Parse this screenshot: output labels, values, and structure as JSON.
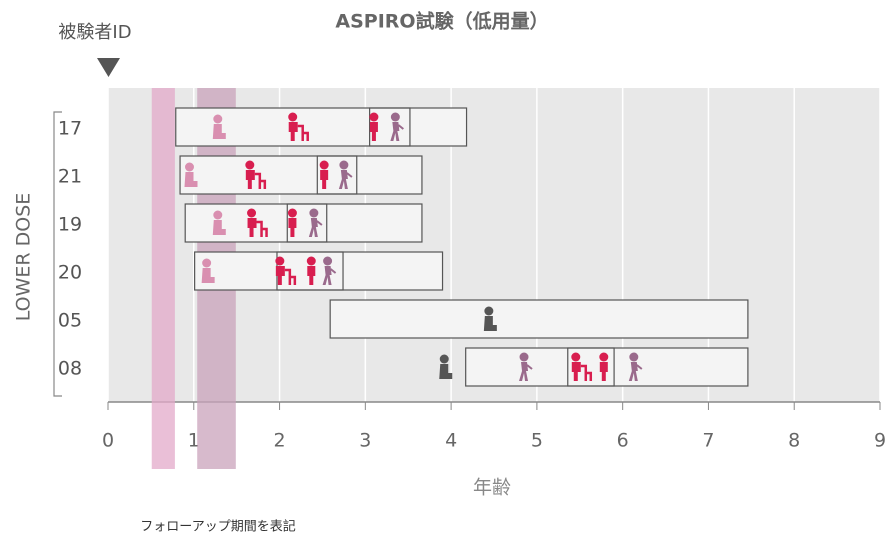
{
  "chart_data": {
    "type": "swimmer",
    "title": "ASPIRO試験（低用量）",
    "id_label": "被験者ID",
    "y_label": "LOWER DOSE",
    "x_label": "年齢",
    "footnote": "フォローアップ期間を表記",
    "xlim": [
      0,
      9
    ],
    "xticks": [
      0,
      1,
      2,
      3,
      4,
      5,
      6,
      7,
      8,
      9
    ],
    "grid": true,
    "shaded_regions": [
      {
        "range": [
          0.51,
          0.78
        ],
        "color": "#e3a9c9"
      },
      {
        "range": [
          1.04,
          1.49
        ],
        "color": "#c9a3bb"
      }
    ],
    "rows": [
      {
        "id": "17",
        "start": 0.79,
        "end": 4.18,
        "highlight": [
          3.05,
          3.52
        ],
        "events": [
          {
            "x": 1.28,
            "marker": "sit",
            "color": "#d98fb0"
          },
          {
            "x": 2.2,
            "marker": "walker",
            "color": "#d81e4f"
          },
          {
            "x": 3.1,
            "marker": "stand",
            "color": "#d81e4f"
          },
          {
            "x": 3.35,
            "marker": "walk",
            "color": "#9a6a8c"
          }
        ]
      },
      {
        "id": "21",
        "start": 0.84,
        "end": 3.66,
        "highlight": [
          2.44,
          2.9
        ],
        "events": [
          {
            "x": 0.95,
            "marker": "sit",
            "color": "#d98fb0"
          },
          {
            "x": 1.7,
            "marker": "walker",
            "color": "#d81e4f"
          },
          {
            "x": 2.52,
            "marker": "stand",
            "color": "#d81e4f"
          },
          {
            "x": 2.75,
            "marker": "walk",
            "color": "#9a6a8c"
          }
        ]
      },
      {
        "id": "19",
        "start": 0.9,
        "end": 3.66,
        "highlight": [
          2.09,
          2.55
        ],
        "events": [
          {
            "x": 1.28,
            "marker": "sit",
            "color": "#d98fb0"
          },
          {
            "x": 1.72,
            "marker": "walker",
            "color": "#d81e4f"
          },
          {
            "x": 2.15,
            "marker": "stand",
            "color": "#d81e4f"
          },
          {
            "x": 2.4,
            "marker": "walk",
            "color": "#9a6a8c"
          }
        ]
      },
      {
        "id": "20",
        "start": 1.01,
        "end": 3.9,
        "highlight": [
          1.97,
          2.74
        ],
        "events": [
          {
            "x": 1.15,
            "marker": "sit",
            "color": "#d98fb0"
          },
          {
            "x": 2.05,
            "marker": "walker",
            "color": "#d81e4f"
          },
          {
            "x": 2.37,
            "marker": "stand",
            "color": "#d81e4f"
          },
          {
            "x": 2.56,
            "marker": "walk",
            "color": "#9a6a8c"
          }
        ]
      },
      {
        "id": "05",
        "start": 2.59,
        "end": 7.46,
        "highlight": null,
        "events": [
          {
            "x": 4.44,
            "marker": "sit",
            "color": "#555555"
          }
        ]
      },
      {
        "id": "08",
        "start": 4.17,
        "end": 7.46,
        "highlight": [
          5.36,
          5.9
        ],
        "events": [
          {
            "x": 3.92,
            "marker": "sit",
            "color": "#555555"
          },
          {
            "x": 4.85,
            "marker": "walk",
            "color": "#9a6a8c"
          },
          {
            "x": 5.5,
            "marker": "walker",
            "color": "#d81e4f"
          },
          {
            "x": 5.78,
            "marker": "stand",
            "color": "#d81e4f"
          },
          {
            "x": 6.13,
            "marker": "walk",
            "color": "#9a6a8c"
          }
        ]
      }
    ]
  }
}
